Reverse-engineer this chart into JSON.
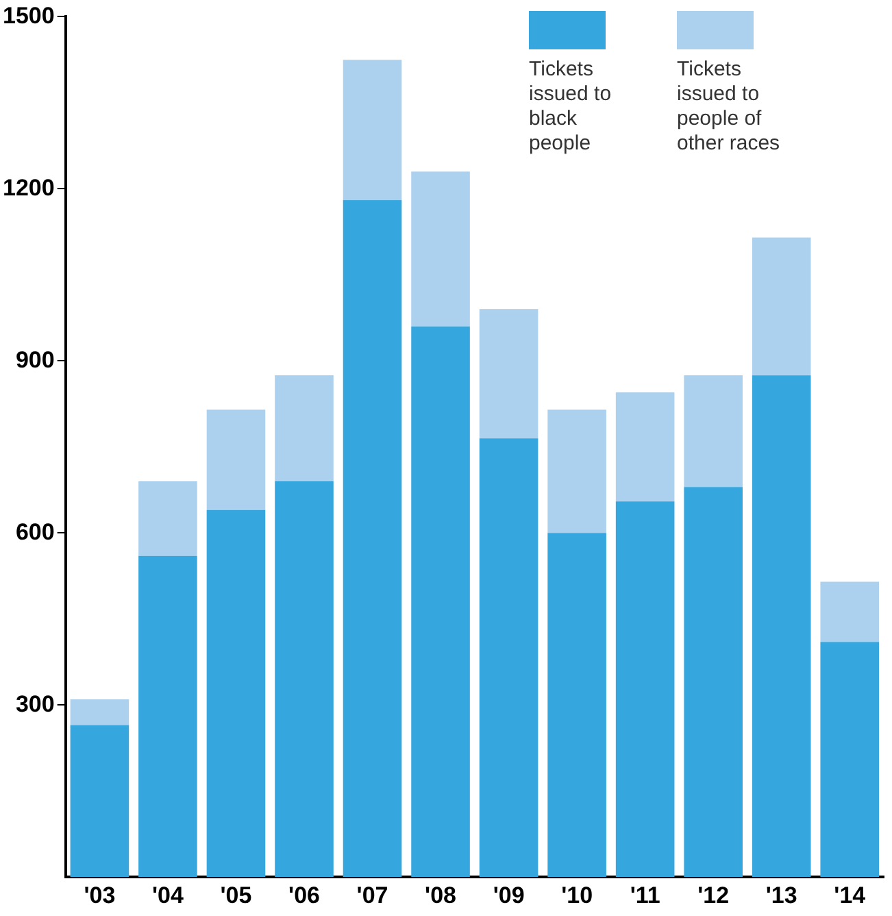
{
  "chart_data": {
    "type": "bar",
    "stacked": true,
    "categories": [
      "'03",
      "'04",
      "'05",
      "'06",
      "'07",
      "'08",
      "'09",
      "'10",
      "'11",
      "'12",
      "'13",
      "'14"
    ],
    "series": [
      {
        "name": "Tickets issued to black people",
        "color": "#36a6df",
        "values": [
          265,
          560,
          640,
          690,
          1180,
          960,
          765,
          600,
          655,
          680,
          875,
          410
        ]
      },
      {
        "name": "Tickets issued to people of other races",
        "color": "#acd1ee",
        "values": [
          45,
          130,
          175,
          185,
          245,
          270,
          225,
          215,
          190,
          195,
          240,
          105
        ]
      }
    ],
    "ylim": [
      0,
      1500
    ],
    "yticks": [
      300,
      600,
      900,
      1200,
      1500
    ],
    "grid": false,
    "legend": "top right"
  }
}
